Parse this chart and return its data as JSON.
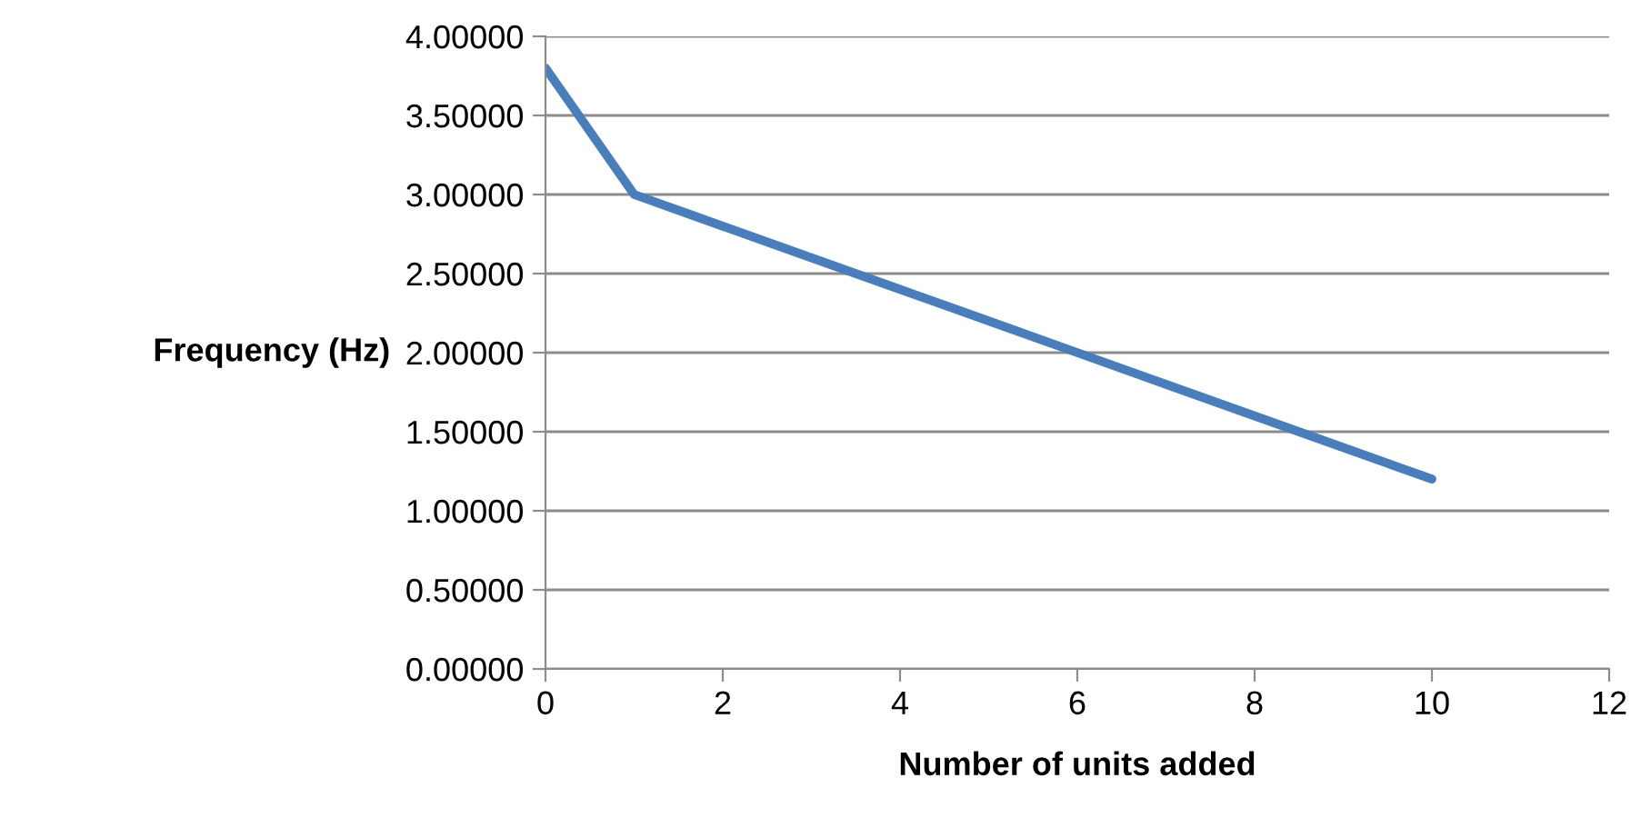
{
  "chart_data": {
    "type": "line",
    "xlabel": "Number of units added",
    "ylabel": "Frequency (Hz)",
    "x": [
      0,
      1,
      2,
      3,
      4,
      5,
      6,
      7,
      8,
      9,
      10
    ],
    "series": [
      {
        "color": "#4a7ebb",
        "values": [
          3.8,
          3.0,
          2.8,
          2.6,
          2.4,
          2.2,
          2.0,
          1.8,
          1.6,
          1.4,
          1.2
        ]
      }
    ],
    "xlim": [
      0,
      12
    ],
    "xticks": [
      0,
      2,
      4,
      6,
      8,
      10,
      12
    ],
    "ylim": [
      0,
      4
    ],
    "yticks": [
      {
        "value": 0,
        "label": "0.00000"
      },
      {
        "value": 0.5,
        "label": "0.50000"
      },
      {
        "value": 1,
        "label": "1.00000"
      },
      {
        "value": 1.5,
        "label": "1.50000"
      },
      {
        "value": 2,
        "label": "2.00000"
      },
      {
        "value": 2.5,
        "label": "2.50000"
      },
      {
        "value": 3,
        "label": "3.00000"
      },
      {
        "value": 3.5,
        "label": "3.50000"
      },
      {
        "value": 4,
        "label": "4.00000"
      }
    ],
    "grid": "y",
    "marker": "none",
    "line_style": "solid"
  }
}
